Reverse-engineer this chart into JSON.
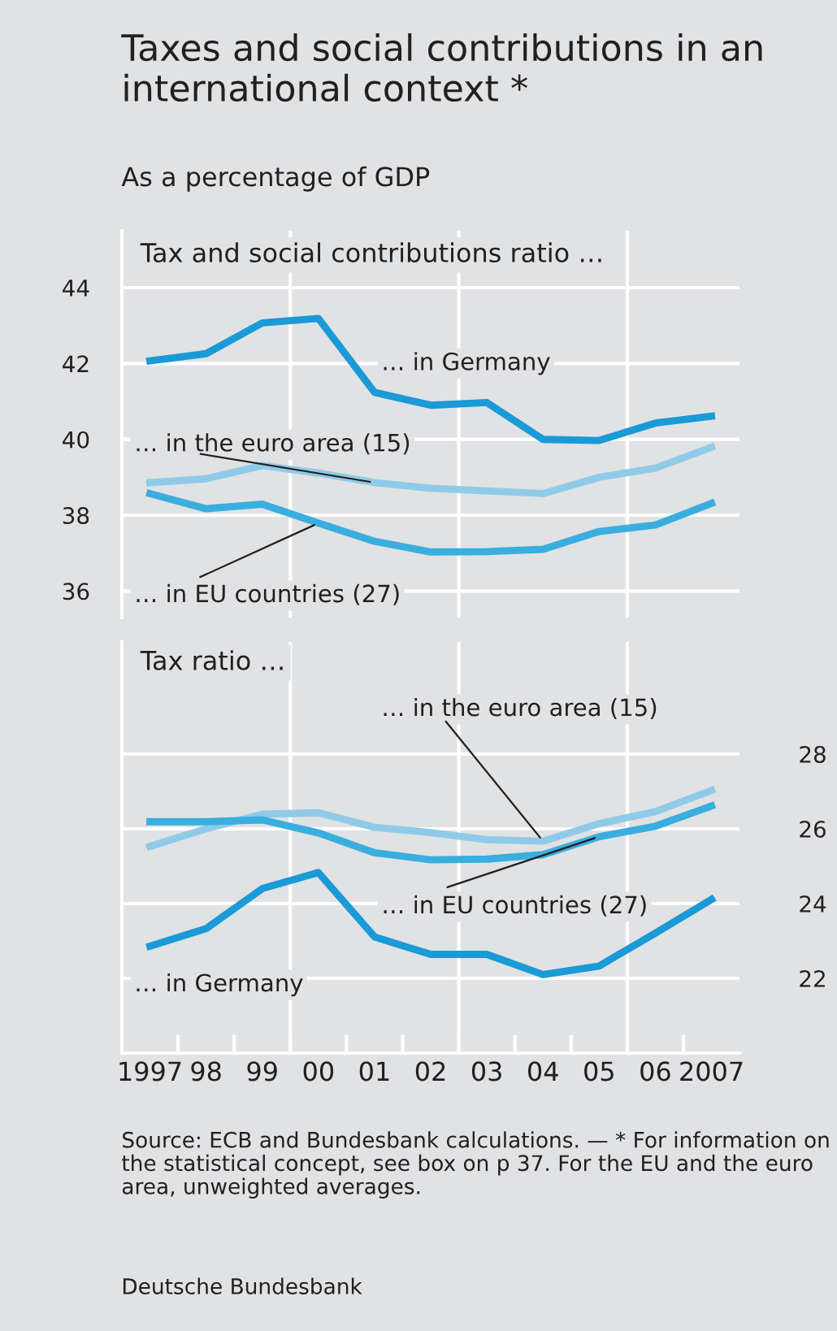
{
  "chart_data": [
    {
      "type": "line",
      "title": "Taxes and social contributions in an international context *",
      "subtitle": "As a percentage of GDP",
      "annotations": [
        "Tax and social contributions ratio …"
      ],
      "x": [
        1997,
        1998,
        1999,
        2000,
        2001,
        2002,
        2003,
        2004,
        2005,
        2006,
        2007
      ],
      "series": [
        {
          "name": "… in Germany",
          "color": "#1a9ad6",
          "values": [
            42.07,
            42.26,
            43.07,
            43.19,
            41.24,
            40.9,
            40.97,
            40.0,
            39.97,
            40.43,
            40.61
          ]
        },
        {
          "name": "… in the euro area (15)",
          "color": "#8fcbe8",
          "values": [
            38.86,
            38.96,
            39.31,
            39.11,
            38.86,
            38.71,
            38.64,
            38.57,
            39.0,
            39.24,
            39.79
          ]
        },
        {
          "name": "… in EU countries (27)",
          "color": "#3aaede",
          "values": [
            38.57,
            38.17,
            38.29,
            37.79,
            37.31,
            37.03,
            37.04,
            37.1,
            37.57,
            37.74,
            38.31
          ]
        }
      ],
      "xlim": [
        1996.5,
        2007.5
      ],
      "ylim": [
        35.3,
        45.5
      ],
      "yticks": [
        36,
        38,
        40,
        42,
        44
      ],
      "ref_lines": [
        {
          "axis": "x",
          "value": 1999.5,
          "color": "#ffffff"
        },
        {
          "axis": "x",
          "value": 2002.5,
          "color": "#ffffff"
        },
        {
          "axis": "x",
          "value": 2005.5,
          "color": "#ffffff"
        }
      ],
      "grid": "y",
      "tick_labels": "y",
      "line_style": "solid",
      "marker": "none"
    },
    {
      "type": "line",
      "title": "Tax ratio …",
      "annotations": [
        "Source: ECB and Bundesbank calculations. — * For information on the statistical concept, see box on p 37. For the EU and the euro area, unweighted averages.",
        "Deutsche Bundesbank"
      ],
      "x": [
        1997,
        1998,
        1999,
        2000,
        2001,
        2002,
        2003,
        2004,
        2005,
        2006,
        2007
      ],
      "series": [
        {
          "name": "… in the euro area (15)",
          "color": "#8fcbe8",
          "values": [
            25.53,
            26.0,
            26.39,
            26.43,
            26.04,
            25.9,
            25.71,
            25.67,
            26.14,
            26.46,
            27.03
          ]
        },
        {
          "name": "… in EU countries (27)",
          "color": "#3aaede",
          "values": [
            26.19,
            26.19,
            26.24,
            25.89,
            25.36,
            25.17,
            25.19,
            25.31,
            25.79,
            26.07,
            26.61
          ]
        },
        {
          "name": "… in Germany",
          "color": "#1a9ad6",
          "values": [
            22.86,
            23.33,
            24.4,
            24.83,
            23.11,
            22.64,
            22.64,
            22.1,
            22.33,
            23.21,
            24.11
          ]
        }
      ],
      "xlim": [
        1996.5,
        2007.5
      ],
      "ylim": [
        20,
        31
      ],
      "yticks": [
        22,
        24,
        26,
        28
      ],
      "xticks": [
        {
          "value": 1997,
          "label": "1997"
        },
        {
          "value": 1998,
          "label": "98"
        },
        {
          "value": 1999,
          "label": "99"
        },
        {
          "value": 2000,
          "label": "00"
        },
        {
          "value": 2001,
          "label": "01"
        },
        {
          "value": 2002,
          "label": "02"
        },
        {
          "value": 2003,
          "label": "03"
        },
        {
          "value": 2004,
          "label": "04"
        },
        {
          "value": 2005,
          "label": "05"
        },
        {
          "value": 2006,
          "label": "06"
        },
        {
          "value": 2007,
          "label": "2007"
        },
        {
          "value": 1997.5,
          "label": null
        },
        {
          "value": 1998.5,
          "label": null
        },
        {
          "value": 1999.5,
          "label": null
        },
        {
          "value": 2000.5,
          "label": null
        },
        {
          "value": 2001.5,
          "label": null
        },
        {
          "value": 2002.5,
          "label": null
        },
        {
          "value": 2003.5,
          "label": null
        },
        {
          "value": 2004.5,
          "label": null
        },
        {
          "value": 2005.5,
          "label": null
        },
        {
          "value": 2006.5,
          "label": null
        }
      ],
      "ref_lines": [
        {
          "axis": "x",
          "value": 1999.5,
          "color": "#ffffff"
        },
        {
          "axis": "x",
          "value": 2002.5,
          "color": "#ffffff"
        },
        {
          "axis": "x",
          "value": 2005.5,
          "color": "#ffffff"
        }
      ],
      "grid": "y",
      "line_style": "solid",
      "marker": "none"
    }
  ]
}
